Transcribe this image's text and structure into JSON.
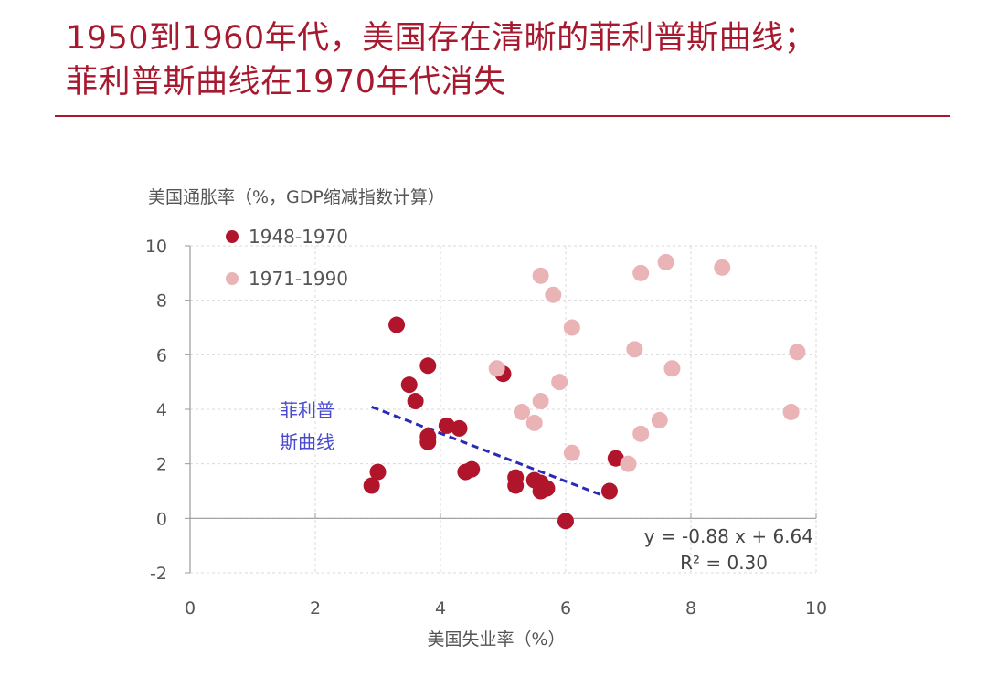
{
  "header": {
    "title_line1": "1950到1960年代，美国存在清晰的菲利普斯曲线；",
    "title_line2": "菲利普斯曲线在1970年代消失"
  },
  "chart_data": {
    "type": "scatter",
    "ylabel": "美国通胀率（%，GDP缩减指数计算）",
    "xlabel": "美国失业率（%）",
    "xlim": [
      0,
      10
    ],
    "ylim": [
      -2,
      10
    ],
    "x_ticks": [
      0,
      2,
      4,
      6,
      8,
      10
    ],
    "y_ticks": [
      -2,
      0,
      2,
      4,
      6,
      8,
      10
    ],
    "grid": "dashed",
    "legend_position": "top-left",
    "series": [
      {
        "name": "1948-1970",
        "color": "#b0152b",
        "points": [
          [
            2.9,
            1.2
          ],
          [
            3.0,
            1.7
          ],
          [
            3.3,
            7.1
          ],
          [
            3.5,
            4.9
          ],
          [
            3.6,
            4.3
          ],
          [
            3.8,
            5.6
          ],
          [
            3.8,
            2.8
          ],
          [
            3.8,
            3.0
          ],
          [
            4.1,
            3.4
          ],
          [
            4.3,
            3.3
          ],
          [
            4.4,
            1.7
          ],
          [
            4.5,
            1.8
          ],
          [
            5.0,
            5.3
          ],
          [
            5.2,
            1.5
          ],
          [
            5.2,
            1.2
          ],
          [
            5.5,
            1.4
          ],
          [
            5.6,
            1.3
          ],
          [
            5.6,
            1.0
          ],
          [
            5.7,
            1.1
          ],
          [
            6.0,
            -0.1
          ],
          [
            6.7,
            1.0
          ],
          [
            6.8,
            2.2
          ]
        ]
      },
      {
        "name": "1971-1990",
        "color": "#eab3b6",
        "points": [
          [
            4.9,
            5.5
          ],
          [
            5.3,
            3.9
          ],
          [
            5.5,
            3.5
          ],
          [
            5.6,
            4.3
          ],
          [
            5.6,
            8.9
          ],
          [
            5.8,
            8.2
          ],
          [
            5.9,
            5.0
          ],
          [
            6.1,
            7.0
          ],
          [
            6.1,
            2.4
          ],
          [
            7.0,
            2.0
          ],
          [
            7.1,
            6.2
          ],
          [
            7.2,
            9.0
          ],
          [
            7.2,
            3.1
          ],
          [
            7.5,
            3.6
          ],
          [
            7.6,
            9.4
          ],
          [
            7.7,
            5.5
          ],
          [
            8.5,
            9.2
          ],
          [
            9.6,
            3.9
          ],
          [
            9.7,
            6.1
          ]
        ]
      }
    ],
    "trendline": {
      "x": [
        2.9,
        6.7
      ],
      "color": "#2a2ab8",
      "slope": -0.88,
      "intercept": 6.64,
      "equation": "y = -0.88 x + 6.64",
      "r2": "R² = 0.30"
    },
    "annotation": {
      "line1": "菲利普",
      "line2": "斯曲线"
    }
  }
}
